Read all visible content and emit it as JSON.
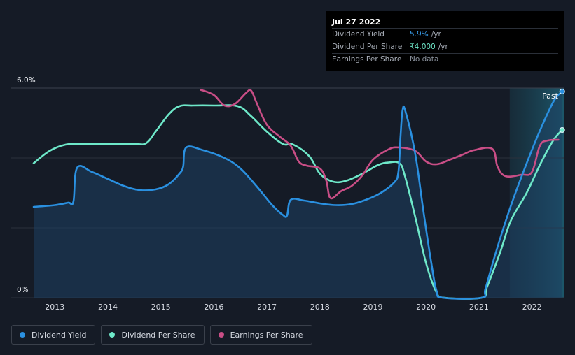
{
  "tooltip": {
    "date": "Jul 27 2022",
    "rows": [
      {
        "label": "Dividend Yield",
        "value": "5.9%",
        "unit": "/yr",
        "color": "#3aa0ef"
      },
      {
        "label": "Dividend Per Share",
        "value": "₹4.000",
        "unit": "/yr",
        "color": "#6ee8c9"
      },
      {
        "label": "Earnings Per Share",
        "value": "No data",
        "unit": "",
        "color": "#8a919c"
      }
    ]
  },
  "legend": [
    {
      "label": "Dividend Yield",
      "color": "#2a90e0"
    },
    {
      "label": "Dividend Per Share",
      "color": "#6ee8c9"
    },
    {
      "label": "Earnings Per Share",
      "color": "#c94e86"
    }
  ],
  "chart_data": {
    "type": "line",
    "title": "",
    "xlabel": "",
    "ylabel": "",
    "xlim": [
      2012.6,
      2022.6
    ],
    "ylim": [
      0,
      6.0
    ],
    "y_tick_labels": [
      {
        "value": 6.0,
        "label": "6.0%"
      },
      {
        "value": 0,
        "label": "0%"
      }
    ],
    "x_ticks": [
      2013,
      2014,
      2015,
      2016,
      2017,
      2018,
      2019,
      2020,
      2021,
      2022
    ],
    "past_label": "Past",
    "past_start": 2021.58,
    "series": [
      {
        "name": "Dividend Yield",
        "color": "#2a90e0",
        "filled": true,
        "points": [
          [
            2012.6,
            2.6
          ],
          [
            2013.0,
            2.65
          ],
          [
            2013.25,
            2.72
          ],
          [
            2013.35,
            2.75
          ],
          [
            2013.42,
            3.72
          ],
          [
            2013.7,
            3.6
          ],
          [
            2014.0,
            3.4
          ],
          [
            2014.3,
            3.2
          ],
          [
            2014.6,
            3.08
          ],
          [
            2014.9,
            3.1
          ],
          [
            2015.15,
            3.25
          ],
          [
            2015.35,
            3.55
          ],
          [
            2015.42,
            3.75
          ],
          [
            2015.48,
            4.3
          ],
          [
            2015.8,
            4.22
          ],
          [
            2016.2,
            4.0
          ],
          [
            2016.5,
            3.7
          ],
          [
            2016.8,
            3.2
          ],
          [
            2017.1,
            2.65
          ],
          [
            2017.3,
            2.37
          ],
          [
            2017.38,
            2.35
          ],
          [
            2017.45,
            2.8
          ],
          [
            2017.7,
            2.78
          ],
          [
            2018.0,
            2.7
          ],
          [
            2018.3,
            2.65
          ],
          [
            2018.6,
            2.68
          ],
          [
            2018.9,
            2.82
          ],
          [
            2019.15,
            3.0
          ],
          [
            2019.4,
            3.3
          ],
          [
            2019.48,
            3.6
          ],
          [
            2019.52,
            4.6
          ],
          [
            2019.56,
            5.38
          ],
          [
            2019.62,
            5.3
          ],
          [
            2019.8,
            4.1
          ],
          [
            2019.95,
            2.5
          ],
          [
            2020.1,
            1.0
          ],
          [
            2020.2,
            0.2
          ],
          [
            2020.32,
            0.0
          ],
          [
            2021.05,
            0.0
          ],
          [
            2021.12,
            0.25
          ],
          [
            2021.3,
            1.2
          ],
          [
            2021.55,
            2.4
          ],
          [
            2021.8,
            3.45
          ],
          [
            2022.1,
            4.6
          ],
          [
            2022.4,
            5.6
          ],
          [
            2022.57,
            5.9
          ]
        ]
      },
      {
        "name": "Dividend Per Share",
        "color": "#6ee8c9",
        "filled": false,
        "points": [
          [
            2012.6,
            3.85
          ],
          [
            2012.9,
            4.2
          ],
          [
            2013.2,
            4.38
          ],
          [
            2013.5,
            4.4
          ],
          [
            2014.0,
            4.4
          ],
          [
            2014.5,
            4.4
          ],
          [
            2014.72,
            4.42
          ],
          [
            2014.9,
            4.75
          ],
          [
            2015.15,
            5.25
          ],
          [
            2015.35,
            5.48
          ],
          [
            2015.6,
            5.5
          ],
          [
            2016.0,
            5.5
          ],
          [
            2016.45,
            5.48
          ],
          [
            2016.7,
            5.2
          ],
          [
            2017.0,
            4.75
          ],
          [
            2017.3,
            4.4
          ],
          [
            2017.5,
            4.38
          ],
          [
            2017.8,
            4.05
          ],
          [
            2018.0,
            3.55
          ],
          [
            2018.25,
            3.32
          ],
          [
            2018.5,
            3.35
          ],
          [
            2018.8,
            3.55
          ],
          [
            2019.1,
            3.8
          ],
          [
            2019.3,
            3.87
          ],
          [
            2019.5,
            3.85
          ],
          [
            2019.6,
            3.5
          ],
          [
            2019.8,
            2.3
          ],
          [
            2020.0,
            1.0
          ],
          [
            2020.2,
            0.15
          ],
          [
            2020.35,
            0.0
          ],
          [
            2021.05,
            0.0
          ],
          [
            2021.15,
            0.3
          ],
          [
            2021.4,
            1.3
          ],
          [
            2021.6,
            2.2
          ],
          [
            2021.9,
            3.0
          ],
          [
            2022.15,
            3.8
          ],
          [
            2022.4,
            4.5
          ],
          [
            2022.57,
            4.8
          ]
        ]
      },
      {
        "name": "Earnings Per Share",
        "color": "#c94e86",
        "filled": false,
        "points": [
          [
            2015.75,
            5.95
          ],
          [
            2016.0,
            5.8
          ],
          [
            2016.2,
            5.5
          ],
          [
            2016.4,
            5.55
          ],
          [
            2016.6,
            5.85
          ],
          [
            2016.7,
            5.93
          ],
          [
            2016.8,
            5.6
          ],
          [
            2017.0,
            4.95
          ],
          [
            2017.25,
            4.6
          ],
          [
            2017.45,
            4.35
          ],
          [
            2017.6,
            3.9
          ],
          [
            2017.75,
            3.78
          ],
          [
            2018.0,
            3.7
          ],
          [
            2018.12,
            3.35
          ],
          [
            2018.2,
            2.85
          ],
          [
            2018.4,
            3.05
          ],
          [
            2018.6,
            3.2
          ],
          [
            2018.8,
            3.5
          ],
          [
            2019.0,
            3.95
          ],
          [
            2019.3,
            4.25
          ],
          [
            2019.5,
            4.3
          ],
          [
            2019.8,
            4.2
          ],
          [
            2020.0,
            3.9
          ],
          [
            2020.2,
            3.82
          ],
          [
            2020.45,
            3.95
          ],
          [
            2020.7,
            4.1
          ],
          [
            2020.9,
            4.22
          ],
          [
            2021.25,
            4.26
          ],
          [
            2021.35,
            3.75
          ],
          [
            2021.5,
            3.48
          ],
          [
            2021.8,
            3.52
          ],
          [
            2022.0,
            3.6
          ],
          [
            2022.15,
            4.35
          ],
          [
            2022.3,
            4.5
          ],
          [
            2022.5,
            4.52
          ]
        ]
      }
    ]
  }
}
